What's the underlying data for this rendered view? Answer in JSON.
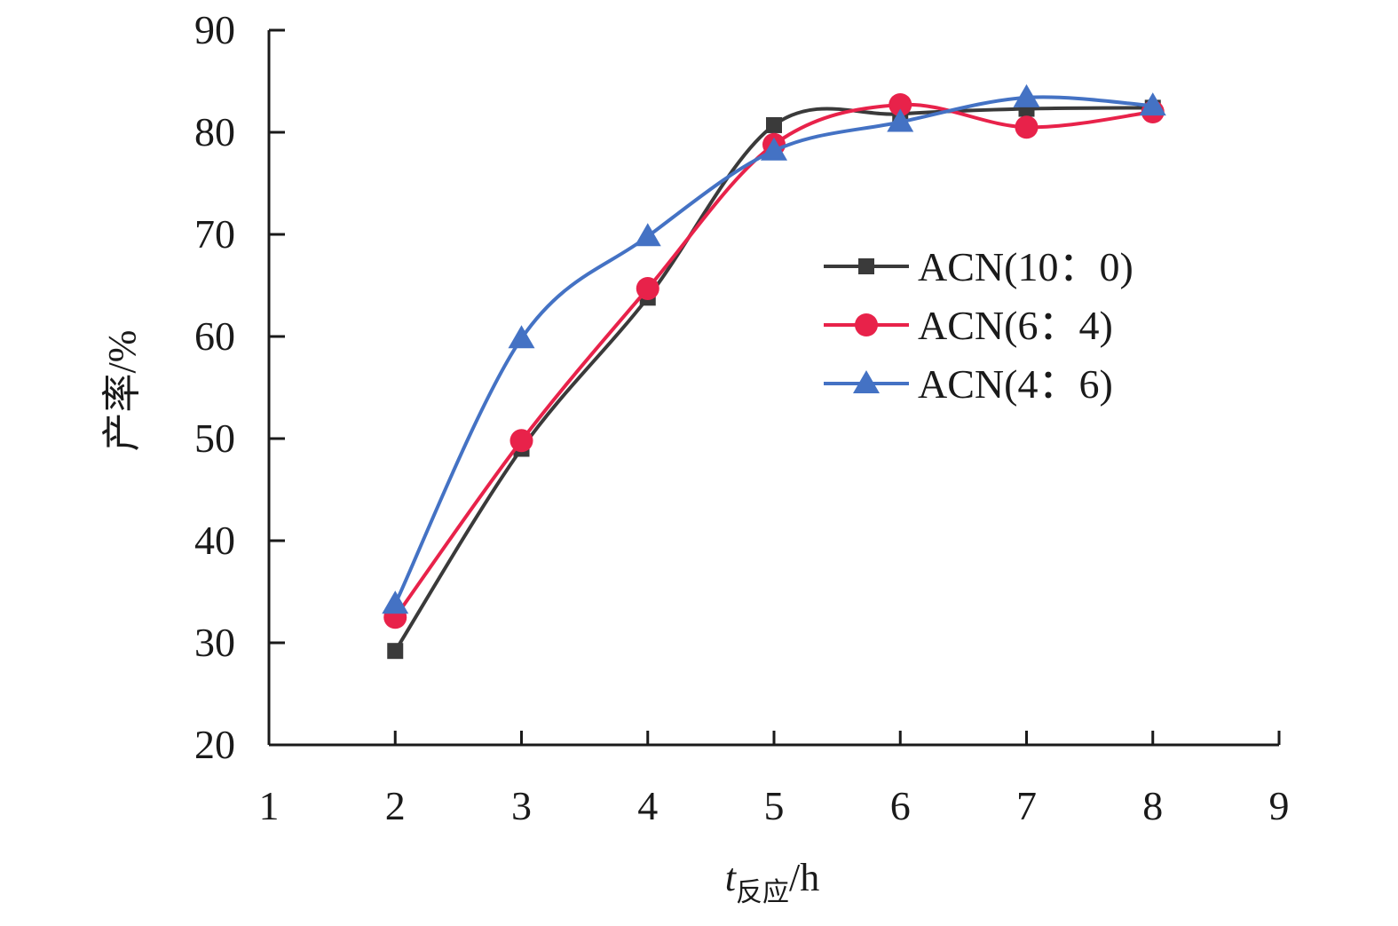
{
  "chart_data": {
    "type": "line",
    "title": "",
    "xlabel_main": "t",
    "xlabel_sub": "反应",
    "xlabel_unit": "/h",
    "ylabel": "产率/%",
    "xlim": [
      1,
      9
    ],
    "ylim": [
      20,
      90
    ],
    "x_ticks": [
      "1",
      "2",
      "3",
      "4",
      "5",
      "6",
      "7",
      "8",
      "9"
    ],
    "y_ticks": [
      "20",
      "30",
      "40",
      "50",
      "60",
      "70",
      "80",
      "90"
    ],
    "grid": false,
    "legend_position": "center-right",
    "smooth": true,
    "series": [
      {
        "name": "ACN(10：0)",
        "marker": "square",
        "color": "#3a3a3a",
        "x": [
          2,
          3,
          4,
          5,
          6,
          7,
          8
        ],
        "y": [
          29.2,
          49.0,
          63.8,
          80.7,
          81.8,
          82.3,
          82.4
        ]
      },
      {
        "name": "ACN(6：4)",
        "marker": "circle",
        "color": "#e8224a",
        "x": [
          2,
          3,
          4,
          5,
          6,
          7,
          8
        ],
        "y": [
          32.5,
          49.8,
          64.7,
          78.8,
          82.7,
          80.5,
          82.0
        ]
      },
      {
        "name": "ACN(4：6)",
        "marker": "triangle",
        "color": "#4472c4",
        "x": [
          2,
          3,
          4,
          5,
          6,
          7,
          8
        ],
        "y": [
          33.8,
          59.8,
          69.8,
          78.2,
          81.0,
          83.4,
          82.6
        ]
      }
    ]
  }
}
